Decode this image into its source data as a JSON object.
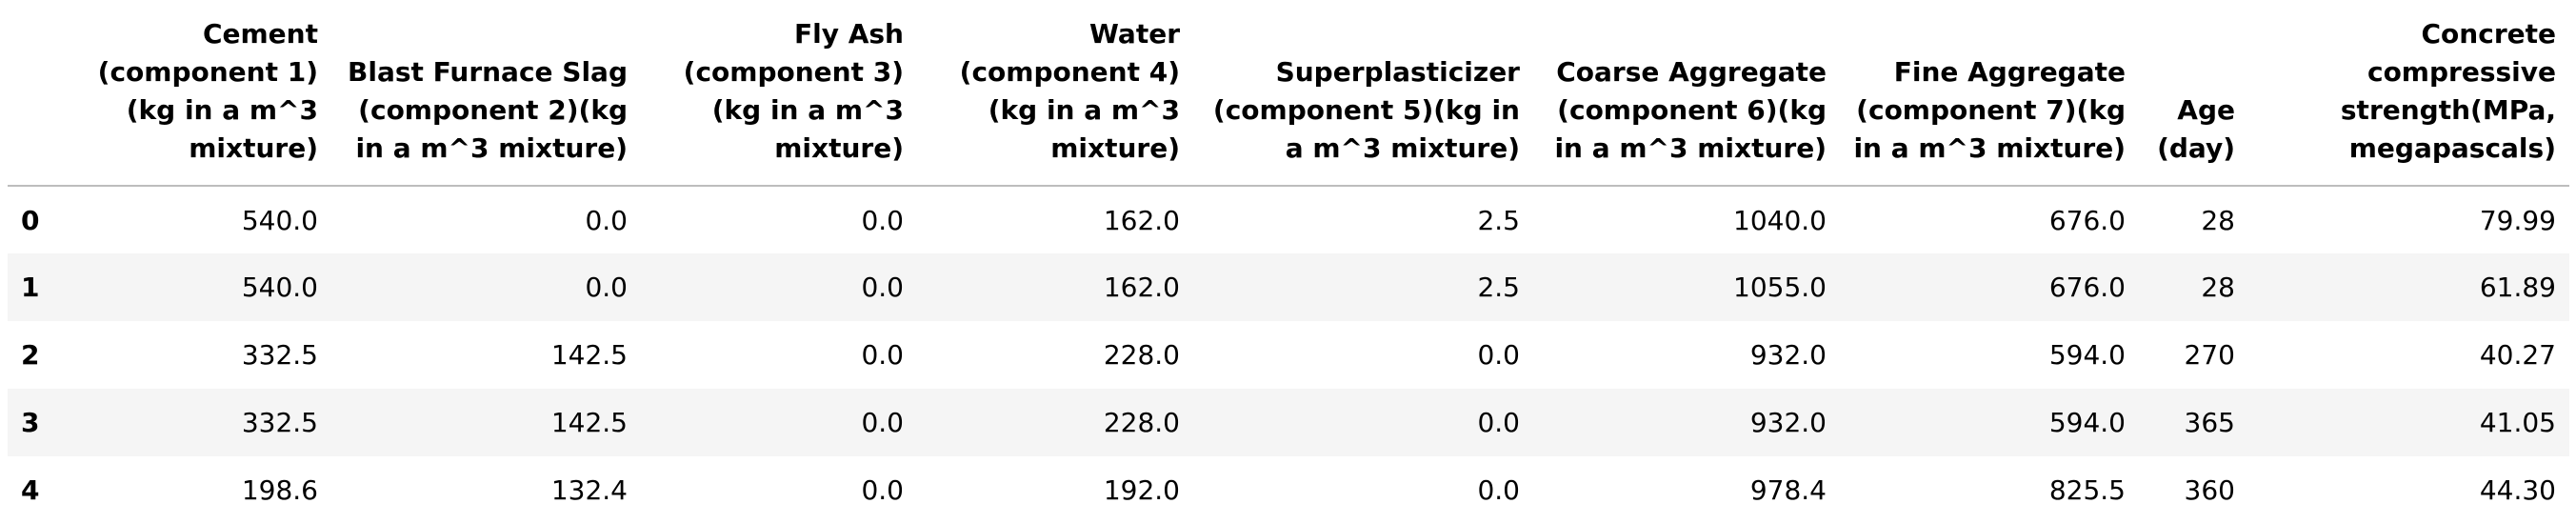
{
  "table": {
    "columns": [
      "",
      "Cement (component 1)(kg in a m^3 mixture)",
      "Blast Furnace Slag (component 2)(kg in a m^3 mixture)",
      "Fly Ash (component 3)(kg in a m^3 mixture)",
      "Water (component 4)(kg in a m^3 mixture)",
      "Superplasticizer (component 5)(kg in a m^3 mixture)",
      "Coarse Aggregate (component 6)(kg in a m^3 mixture)",
      "Fine Aggregate (component 7)(kg in a m^3 mixture)",
      "Age (day)",
      "Concrete compressive strength(MPa, megapascals)"
    ],
    "rows": [
      [
        "0",
        "540.0",
        "0.0",
        "0.0",
        "162.0",
        "2.5",
        "1040.0",
        "676.0",
        "28",
        "79.99"
      ],
      [
        "1",
        "540.0",
        "0.0",
        "0.0",
        "162.0",
        "2.5",
        "1055.0",
        "676.0",
        "28",
        "61.89"
      ],
      [
        "2",
        "332.5",
        "142.5",
        "0.0",
        "228.0",
        "0.0",
        "932.0",
        "594.0",
        "270",
        "40.27"
      ],
      [
        "3",
        "332.5",
        "142.5",
        "0.0",
        "228.0",
        "0.0",
        "932.0",
        "594.0",
        "365",
        "41.05"
      ],
      [
        "4",
        "198.6",
        "132.4",
        "0.0",
        "192.0",
        "0.0",
        "978.4",
        "825.5",
        "360",
        "44.30"
      ]
    ]
  }
}
